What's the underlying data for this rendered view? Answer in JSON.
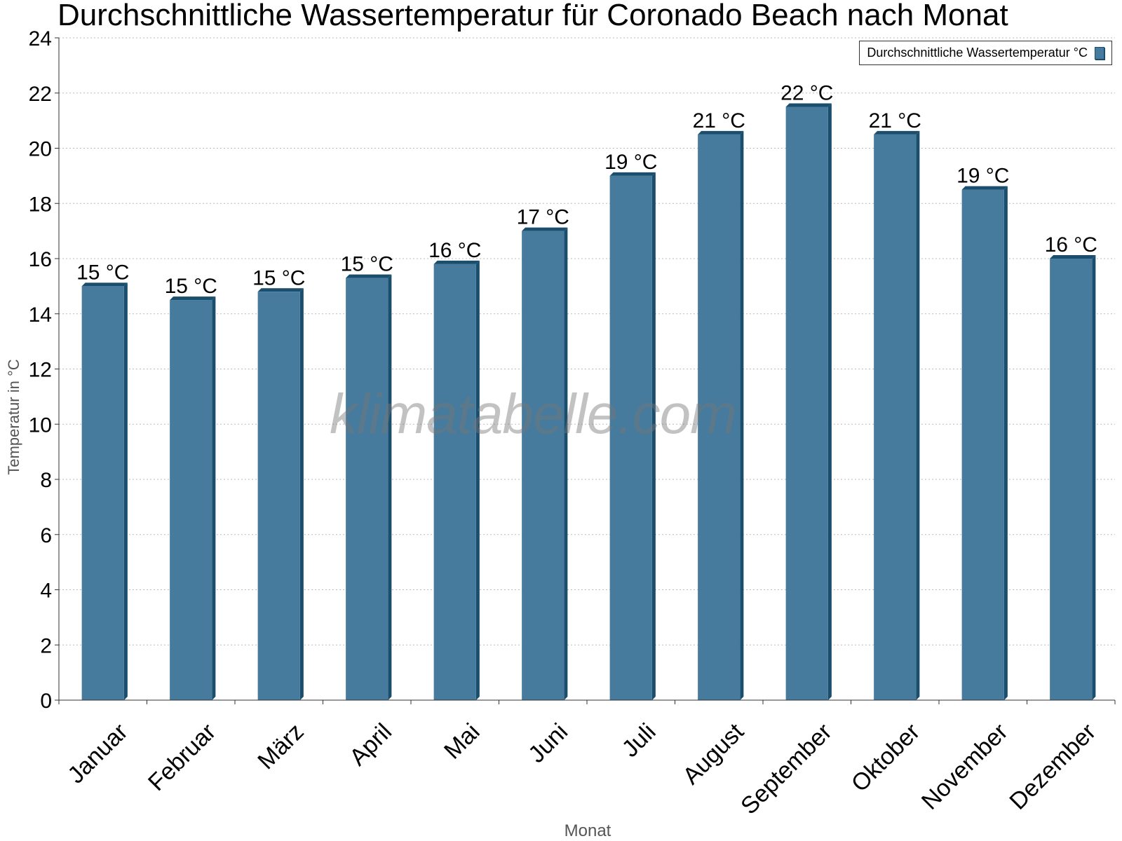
{
  "chart_data": {
    "type": "bar",
    "title": "Durchschnittliche Wassertemperatur für Coronado Beach nach Monat",
    "xlabel": "Monat",
    "ylabel": "Temperatur in °C",
    "ylim": [
      0,
      24
    ],
    "yticks": [
      0,
      2,
      4,
      6,
      8,
      10,
      12,
      14,
      16,
      18,
      20,
      22,
      24
    ],
    "grid": true,
    "legend_position": "top-right",
    "categories": [
      "Januar",
      "Februar",
      "März",
      "April",
      "Mai",
      "Juni",
      "Juli",
      "August",
      "September",
      "Oktober",
      "November",
      "Dezember"
    ],
    "series": [
      {
        "name": "Durchschnittliche Wassertemperatur °C",
        "values": [
          15.0,
          14.5,
          14.8,
          15.3,
          15.8,
          17.0,
          19.0,
          20.5,
          21.5,
          20.5,
          18.5,
          16.0
        ],
        "data_labels": [
          "15 °C",
          "15 °C",
          "15 °C",
          "15 °C",
          "16 °C",
          "17 °C",
          "19 °C",
          "21 °C",
          "22 °C",
          "21 °C",
          "19 °C",
          "16 °C"
        ],
        "color": "#467b9d",
        "edge_color": "#1b4e6d"
      }
    ]
  },
  "watermark": "klimatabelle.com"
}
